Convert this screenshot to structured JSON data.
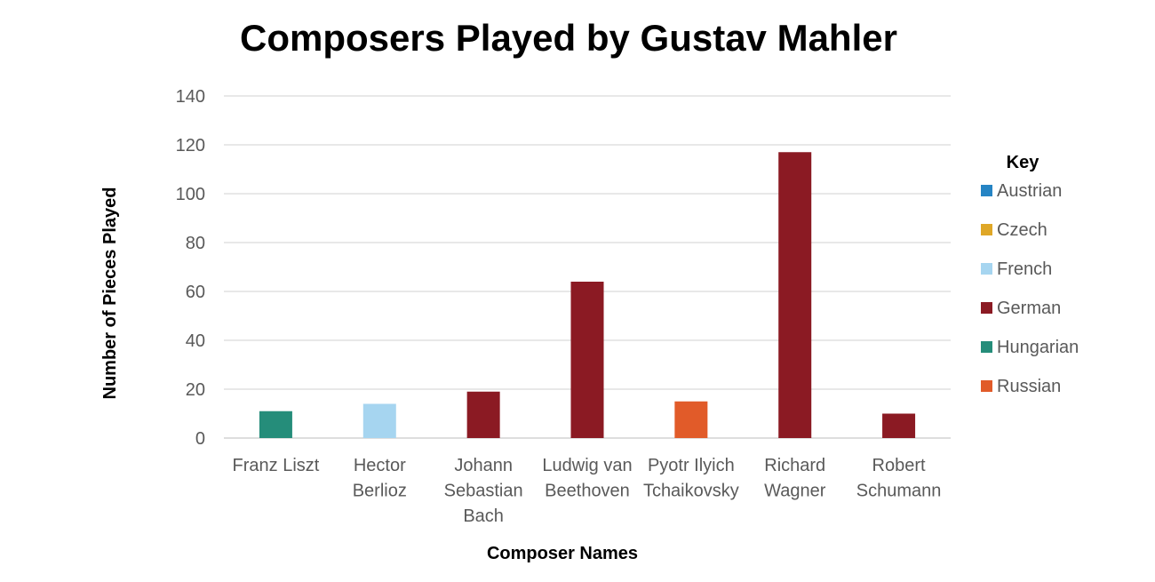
{
  "chart_data": {
    "type": "bar",
    "title": "Composers Played by Gustav Mahler",
    "xlabel": "Composer Names",
    "ylabel": "Number of Pieces Played",
    "ylim": [
      0,
      140
    ],
    "yticks": [
      0,
      20,
      40,
      60,
      80,
      100,
      120,
      140
    ],
    "grid": true,
    "legend_title": "Key",
    "legend_position": "right",
    "categories": [
      [
        "Franz Liszt"
      ],
      [
        "Hector",
        "Berlioz"
      ],
      [
        "Johann",
        "Sebastian",
        "Bach"
      ],
      [
        "Ludwig van",
        "Beethoven"
      ],
      [
        "Pyotr Ilyich",
        "Tchaikovsky"
      ],
      [
        "Richard",
        "Wagner"
      ],
      [
        "Robert",
        "Schumann"
      ]
    ],
    "values": [
      11,
      14,
      19,
      64,
      15,
      117,
      10
    ],
    "nationality": [
      "Hungarian",
      "French",
      "German",
      "German",
      "Russian",
      "German",
      "German"
    ],
    "legend": [
      {
        "name": "Austrian",
        "color": "#2584c4"
      },
      {
        "name": "Czech",
        "color": "#dfa727"
      },
      {
        "name": "French",
        "color": "#a6d5f0"
      },
      {
        "name": "German",
        "color": "#8b1a23"
      },
      {
        "name": "Hungarian",
        "color": "#258d7a"
      },
      {
        "name": "Russian",
        "color": "#e15b29"
      }
    ]
  }
}
